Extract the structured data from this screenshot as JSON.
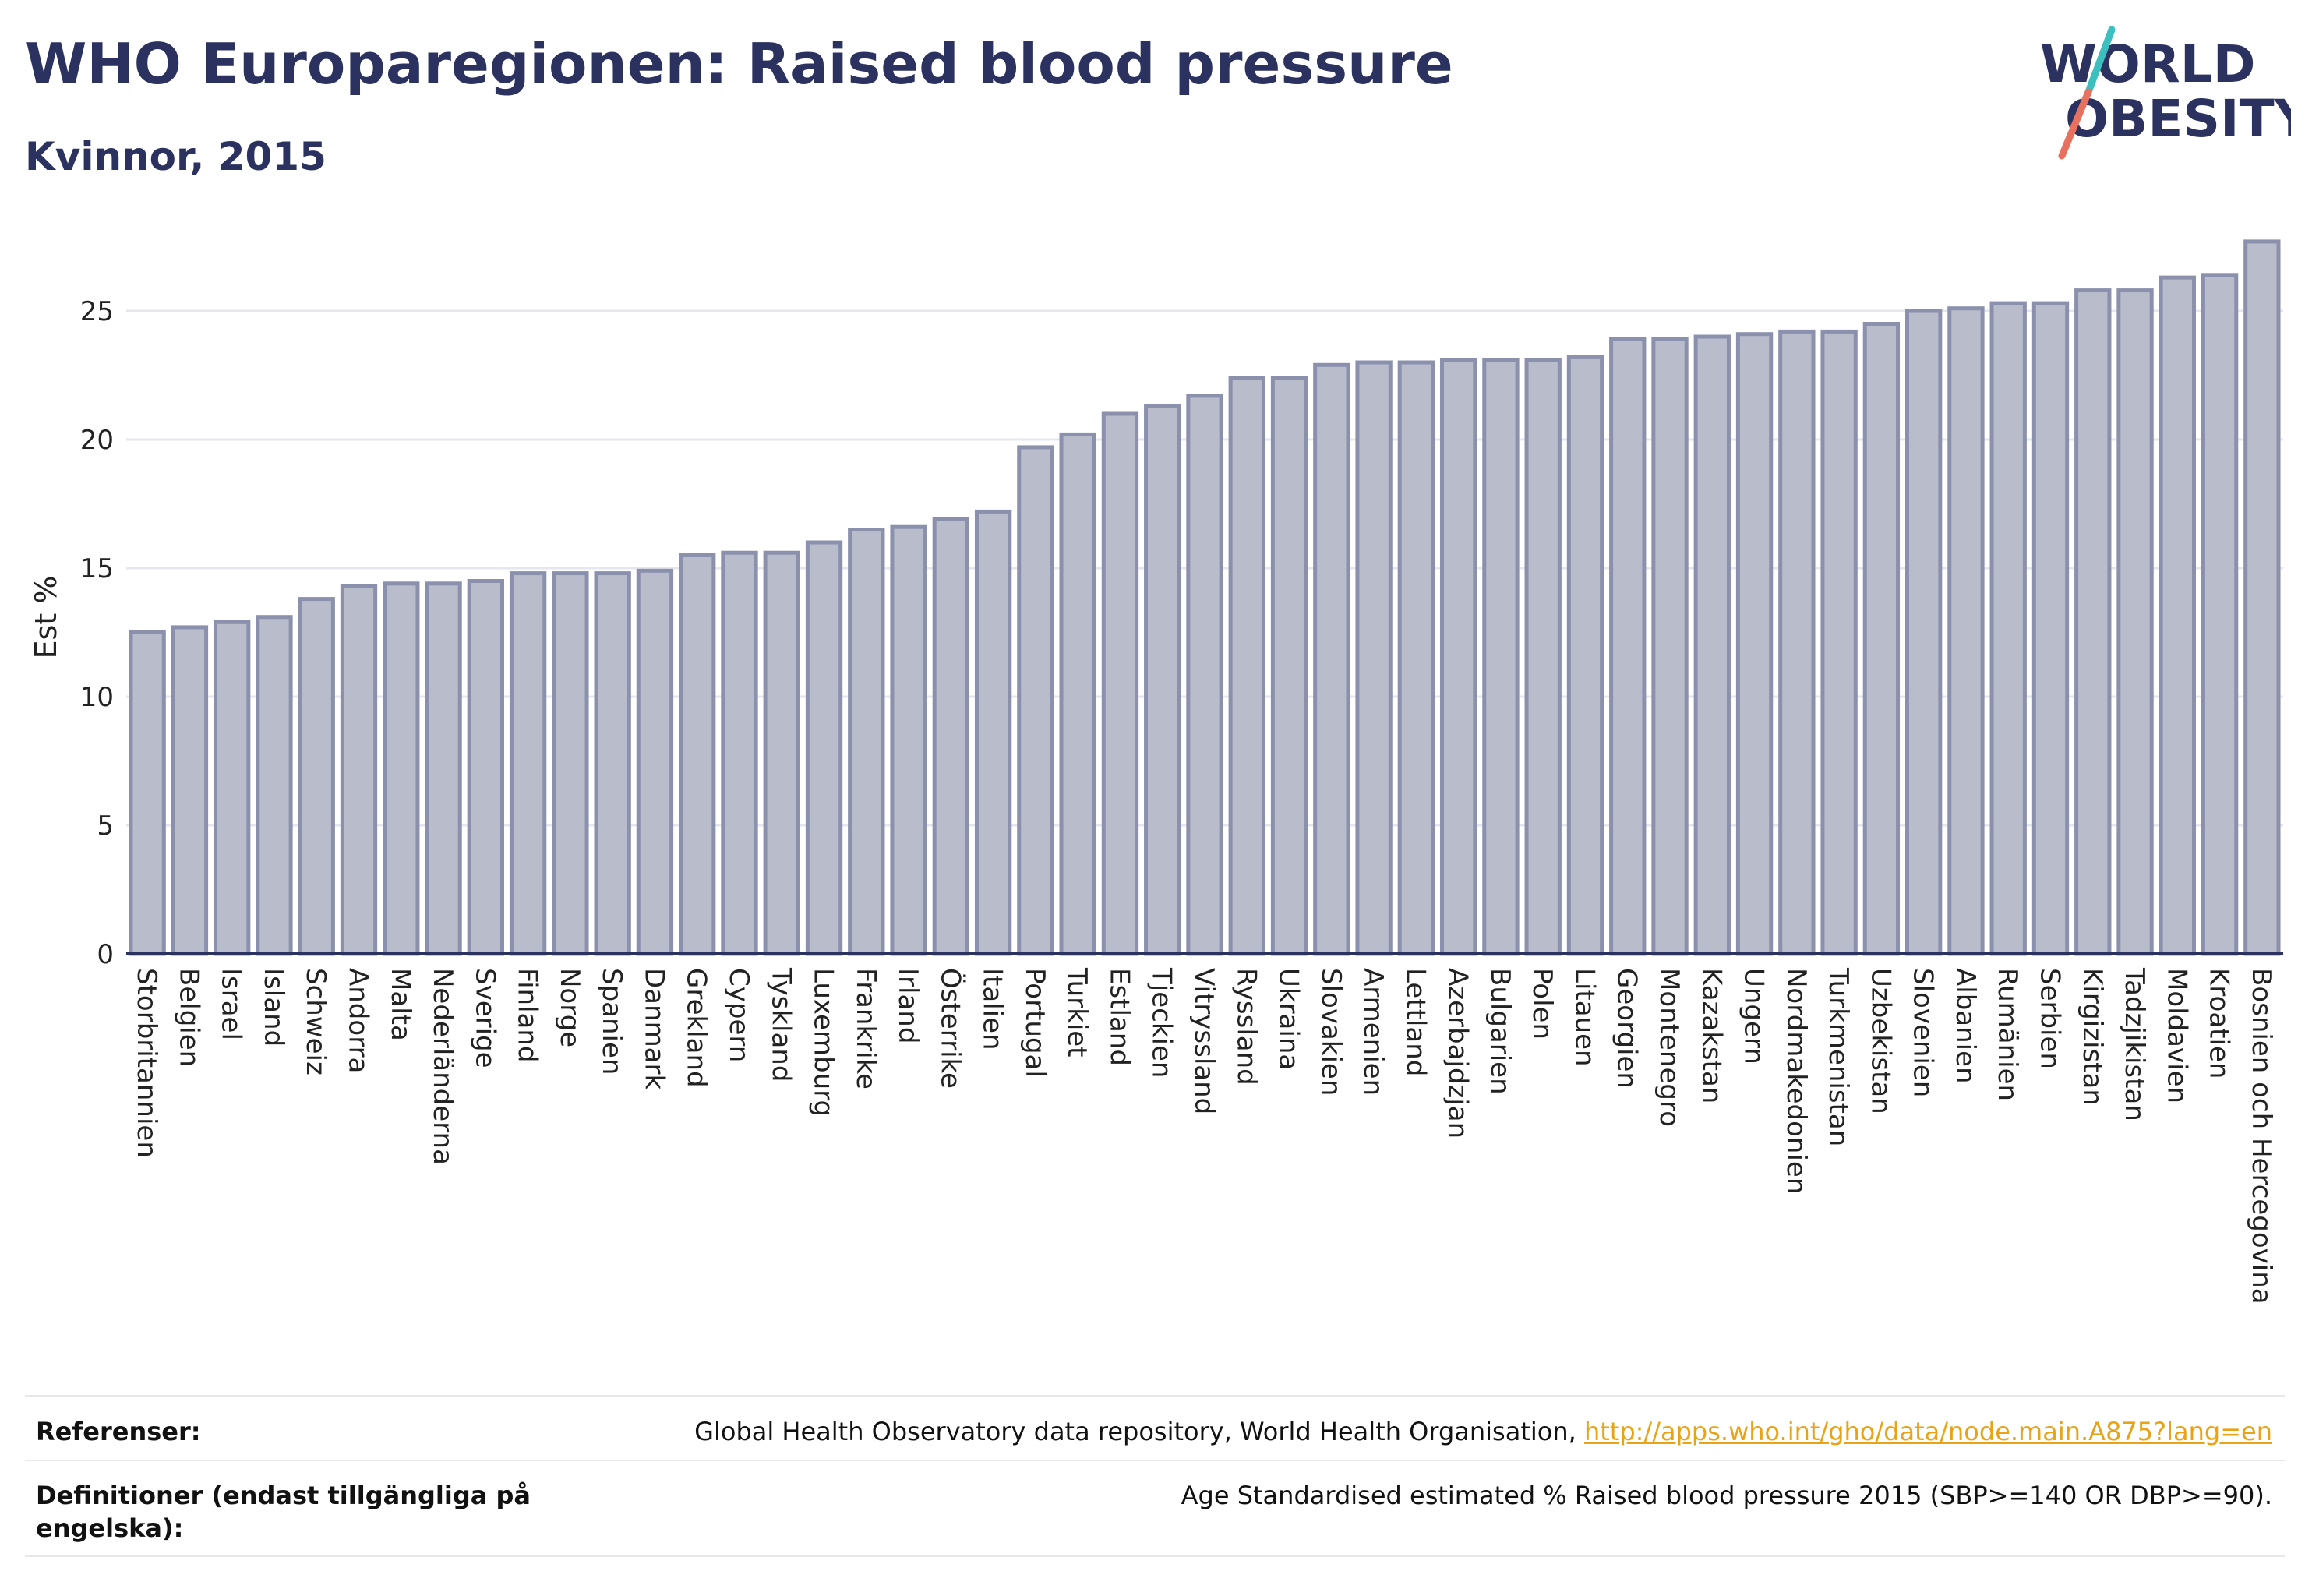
{
  "header": {
    "title": "WHO Europaregionen: Raised blood pressure",
    "subtitle": "Kvinnor, 2015",
    "logo_line1": "WORLD",
    "logo_line2": "OBESITY"
  },
  "colors": {
    "title": "#2b3260",
    "bar_fill": "#b9bccb",
    "bar_stroke": "#8b90ad",
    "axis": "#2b3260",
    "grid": "#e6e7ee",
    "logo_teal": "#3bbfbf",
    "logo_coral": "#e8705f",
    "link": "#e8a317"
  },
  "chart_data": {
    "type": "bar",
    "ylabel": "Est %",
    "xlabel": "",
    "ylim": [
      0,
      28
    ],
    "yticks": [
      0,
      5,
      10,
      15,
      20,
      25
    ],
    "grid": true,
    "categories": [
      "Storbritannien",
      "Belgien",
      "Israel",
      "Island",
      "Schweiz",
      "Andorra",
      "Malta",
      "Nederländerna",
      "Sverige",
      "Finland",
      "Norge",
      "Spanien",
      "Danmark",
      "Grekland",
      "Cypern",
      "Tyskland",
      "Luxemburg",
      "Frankrike",
      "Irland",
      "Österrike",
      "Italien",
      "Portugal",
      "Turkiet",
      "Estland",
      "Tjeckien",
      "Vitryssland",
      "Ryssland",
      "Ukraina",
      "Slovakien",
      "Armenien",
      "Lettland",
      "Azerbajdzjan",
      "Bulgarien",
      "Polen",
      "Litauen",
      "Georgien",
      "Montenegro",
      "Kazakstan",
      "Ungern",
      "Nordmakedonien",
      "Turkmenistan",
      "Uzbekistan",
      "Slovenien",
      "Albanien",
      "Rumänien",
      "Serbien",
      "Kirgizistan",
      "Tadzjikistan",
      "Moldavien",
      "Kroatien",
      "Bosnien och Hercegovina"
    ],
    "values": [
      12.5,
      12.7,
      12.9,
      13.1,
      13.8,
      14.3,
      14.4,
      14.4,
      14.5,
      14.8,
      14.8,
      14.8,
      14.9,
      15.5,
      15.6,
      15.6,
      16.0,
      16.5,
      16.6,
      16.9,
      17.2,
      19.7,
      20.2,
      21.0,
      21.3,
      21.7,
      22.4,
      22.4,
      22.9,
      23.0,
      23.0,
      23.1,
      23.1,
      23.1,
      23.2,
      23.9,
      23.9,
      24.0,
      24.1,
      24.2,
      24.2,
      24.5,
      25.0,
      25.1,
      25.3,
      25.3,
      25.8,
      25.8,
      26.3,
      26.4,
      27.7
    ]
  },
  "footer": {
    "references_label": "Referenser:",
    "references_text": "Global Health Observatory data repository, World Health Organisation, ",
    "references_link": "http://apps.who.int/gho/data/node.main.A875?lang=en",
    "definitions_label": "Definitioner (endast tillgängliga på engelska):",
    "definitions_text": "Age Standardised estimated % Raised blood pressure 2015 (SBP>=140 OR DBP>=90)."
  }
}
